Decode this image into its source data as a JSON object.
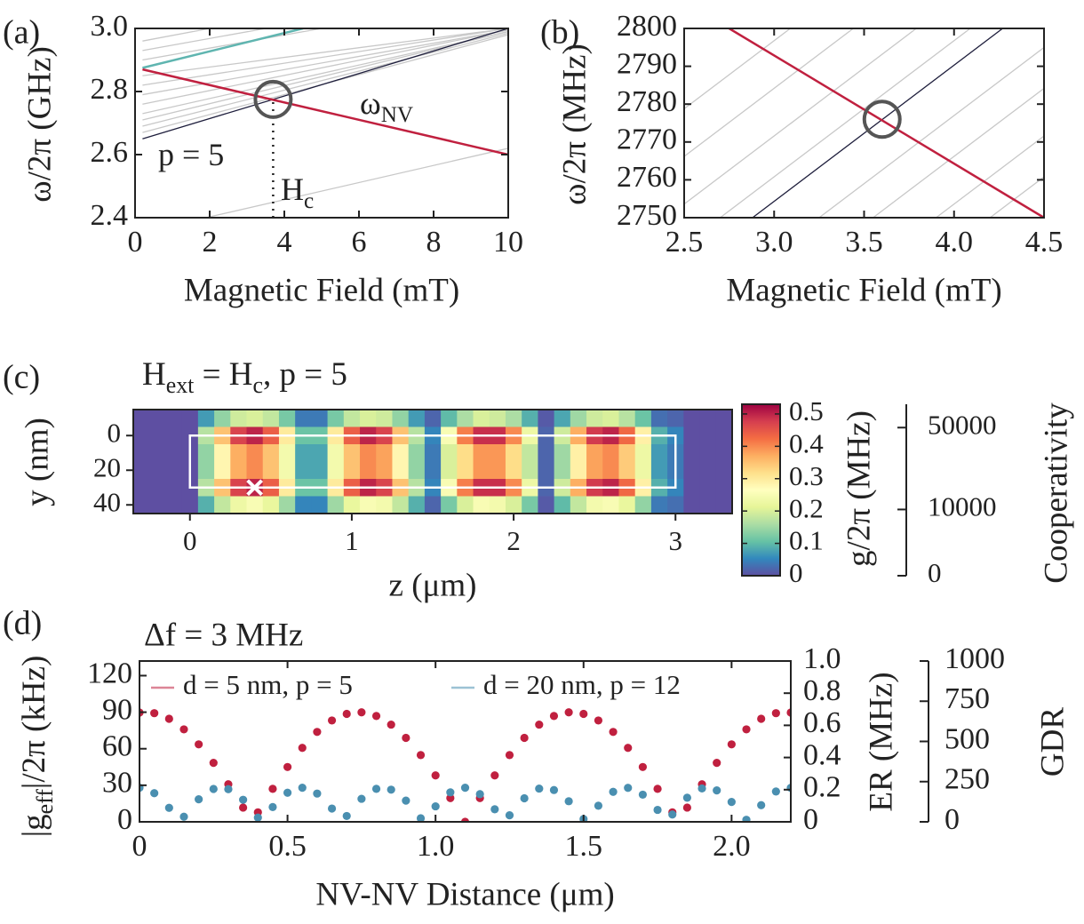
{
  "chart_data": [
    {
      "type": "line",
      "panel_label": "(a)",
      "ylabel": "ω/2π (GHz)",
      "xlabel": "Magnetic Field (mT)",
      "xlim": [
        0,
        10
      ],
      "ylim": [
        2.4,
        3.0
      ],
      "xticks": [
        0,
        2,
        4,
        6,
        8,
        10
      ],
      "yticks": [
        2.4,
        2.6,
        2.8,
        {
          "value": 3,
          "label": "3.0"
        }
      ],
      "series": [
        {
          "color": "#c8c8c8",
          "x": [
            0.2,
            10
          ],
          "values": [
            2.67,
            2.98
          ]
        },
        {
          "color": "#c8c8c8",
          "x": [
            0.2,
            10
          ],
          "values": [
            2.69,
            2.985
          ]
        },
        {
          "color": "#c8c8c8",
          "x": [
            0.2,
            10
          ],
          "values": [
            2.71,
            2.99
          ]
        },
        {
          "color": "#c8c8c8",
          "x": [
            0.2,
            10
          ],
          "values": [
            2.73,
            2.99
          ]
        },
        {
          "color": "#c8c8c8",
          "x": [
            0.2,
            10
          ],
          "values": [
            2.76,
            2.995
          ]
        },
        {
          "color": "#c8c8c8",
          "x": [
            0.2,
            10
          ],
          "values": [
            2.79,
            2.995
          ]
        },
        {
          "color": "#c8c8c8",
          "x": [
            0.2,
            10
          ],
          "values": [
            2.82,
            3.0
          ]
        },
        {
          "color": "#c8c8c8",
          "x": [
            0.2,
            10
          ],
          "values": [
            2.85,
            3.0
          ]
        },
        {
          "color": "#c8c8c8",
          "x": [
            0.2,
            5
          ],
          "values": [
            2.9,
            3.0
          ]
        },
        {
          "color": "#c8c8c8",
          "x": [
            0.2,
            3.5
          ],
          "values": [
            2.93,
            3.0
          ]
        },
        {
          "color": "#c8c8c8",
          "x": [
            0.2,
            2
          ],
          "values": [
            2.96,
            3.0
          ]
        },
        {
          "color": "#c8c8c8",
          "x": [
            1.9,
            10
          ],
          "values": [
            2.4,
            2.62
          ]
        },
        {
          "color": "#1e1e3c",
          "x": [
            0.2,
            10
          ],
          "values": [
            2.65,
            3.0
          ]
        },
        {
          "color": "#5fb5b0",
          "x": [
            0.2,
            4.5
          ],
          "values": [
            2.875,
            3.0
          ]
        },
        {
          "color": "#c0203f",
          "x": [
            0.2,
            10
          ],
          "values": [
            2.87,
            2.6
          ]
        }
      ],
      "crossing": {
        "x": 3.7,
        "y": 2.775
      },
      "dropline": true,
      "annotations": [
        [
          "p = 5"
        ],
        [
          "ω",
          {
            "sub": "NV"
          }
        ],
        [
          "H",
          {
            "sub": "c"
          }
        ]
      ]
    },
    {
      "type": "line",
      "panel_label": "(b)",
      "ylabel": "ω/2π (MHz)",
      "xlabel": "Magnetic Field (mT)",
      "xlim": [
        2.5,
        4.5
      ],
      "ylim": [
        2750,
        2800
      ],
      "xticks": [
        2.5,
        {
          "value": 3,
          "label": "3.0"
        },
        3.5,
        {
          "value": 4,
          "label": "4.0"
        },
        4.5
      ],
      "yticks": [
        2750,
        2760,
        2770,
        2780,
        2790,
        2800
      ],
      "series": [
        {
          "color": "#c8c8c8",
          "x": [
            1.7,
            3.09
          ],
          "values": [
            2750,
            2800
          ]
        },
        {
          "color": "#c8c8c8",
          "x": [
            2.05,
            3.44
          ],
          "values": [
            2750,
            2800
          ]
        },
        {
          "color": "#c8c8c8",
          "x": [
            2.4,
            3.79
          ],
          "values": [
            2750,
            2800
          ]
        },
        {
          "color": "#c8c8c8",
          "x": [
            2.7,
            4.09
          ],
          "values": [
            2750,
            2800
          ]
        },
        {
          "color": "#c8c8c8",
          "x": [
            3.25,
            4.64
          ],
          "values": [
            2750,
            2800
          ]
        },
        {
          "color": "#c8c8c8",
          "x": [
            3.55,
            4.94
          ],
          "values": [
            2750,
            2800
          ]
        },
        {
          "color": "#c8c8c8",
          "x": [
            3.9,
            5.29
          ],
          "values": [
            2750,
            2800
          ]
        },
        {
          "color": "#c8c8c8",
          "x": [
            4.2,
            5.59
          ],
          "values": [
            2750,
            2800
          ]
        },
        {
          "color": "#1e1e3c",
          "x": [
            2.88,
            4.27
          ],
          "values": [
            2750,
            2800
          ]
        },
        {
          "color": "#c0203f",
          "x": [
            2.75,
            4.5
          ],
          "values": [
            2800,
            2750
          ]
        }
      ],
      "crossing": {
        "x": 3.6,
        "y": 2776
      }
    },
    {
      "type": "heatmap",
      "panel_label": "(c)",
      "title": [
        "H",
        {
          "sub": "ext"
        },
        " = H",
        {
          "sub": "c"
        },
        ", p = 5"
      ],
      "ylabel": "y (nm)",
      "xlabel": "z (μm)",
      "zlabel": "g/2π (MHz)",
      "y2label": "Cooperativity",
      "xlim": [
        -0.35,
        3.35
      ],
      "ylim": [
        -15,
        45
      ],
      "yinvert": true,
      "xticks": [
        0,
        1,
        2,
        3
      ],
      "yticks": [
        0,
        20,
        40
      ],
      "x": [
        -0.3,
        -0.2,
        -0.1,
        0,
        0.1,
        0.2,
        0.3,
        0.4,
        0.5,
        0.6,
        0.7,
        0.8,
        0.9,
        1,
        1.1,
        1.2,
        1.3,
        1.4,
        1.5,
        1.6,
        1.7,
        1.8,
        1.9,
        2,
        2.1,
        2.2,
        2.3,
        2.4,
        2.5,
        2.6,
        2.7,
        2.8,
        2.9,
        3,
        3.1,
        3.2,
        3.3
      ],
      "y": [
        -10,
        0,
        10,
        20,
        30,
        40
      ],
      "z": [
        [
          0,
          0,
          0,
          0,
          0.07,
          0.14,
          0.19,
          0.2,
          0.18,
          0.12,
          0.04,
          0.04,
          0.12,
          0.18,
          0.2,
          0.19,
          0.14,
          0.07,
          0.02,
          0.1,
          0.16,
          0.2,
          0.19,
          0.16,
          0.09,
          0.01,
          0.08,
          0.15,
          0.19,
          0.2,
          0.17,
          0.11,
          0.03,
          0.02,
          0,
          0,
          0
        ],
        [
          0,
          0,
          0,
          0,
          0.17,
          0.35,
          0.47,
          0.5,
          0.44,
          0.3,
          0.11,
          0.11,
          0.3,
          0.44,
          0.5,
          0.47,
          0.35,
          0.17,
          0.05,
          0.25,
          0.41,
          0.49,
          0.49,
          0.4,
          0.23,
          0.02,
          0.19,
          0.37,
          0.48,
          0.5,
          0.43,
          0.29,
          0.09,
          0.05,
          0,
          0,
          0
        ],
        [
          0,
          0,
          0,
          0,
          0.14,
          0.28,
          0.37,
          0.4,
          0.35,
          0.24,
          0.08,
          0.08,
          0.24,
          0.35,
          0.4,
          0.38,
          0.28,
          0.14,
          0.04,
          0.2,
          0.32,
          0.39,
          0.39,
          0.32,
          0.18,
          0.02,
          0.15,
          0.29,
          0.38,
          0.4,
          0.34,
          0.23,
          0.07,
          0.04,
          0,
          0,
          0
        ],
        [
          0,
          0,
          0,
          0,
          0.14,
          0.28,
          0.37,
          0.4,
          0.35,
          0.24,
          0.08,
          0.08,
          0.24,
          0.35,
          0.4,
          0.38,
          0.28,
          0.14,
          0.04,
          0.2,
          0.32,
          0.39,
          0.39,
          0.32,
          0.18,
          0.02,
          0.15,
          0.29,
          0.38,
          0.4,
          0.34,
          0.23,
          0.07,
          0.04,
          0,
          0,
          0
        ],
        [
          0,
          0,
          0,
          0,
          0.17,
          0.35,
          0.47,
          0.5,
          0.44,
          0.3,
          0.11,
          0.11,
          0.3,
          0.44,
          0.5,
          0.47,
          0.35,
          0.17,
          0.05,
          0.25,
          0.41,
          0.49,
          0.49,
          0.4,
          0.23,
          0.02,
          0.19,
          0.37,
          0.48,
          0.5,
          0.43,
          0.29,
          0.09,
          0.05,
          0,
          0,
          0
        ],
        [
          0,
          0,
          0,
          0,
          0.09,
          0.18,
          0.23,
          0.25,
          0.22,
          0.15,
          0.05,
          0.05,
          0.15,
          0.22,
          0.25,
          0.24,
          0.18,
          0.09,
          0.02,
          0.12,
          0.2,
          0.25,
          0.24,
          0.2,
          0.12,
          0.01,
          0.1,
          0.18,
          0.24,
          0.25,
          0.22,
          0.14,
          0.04,
          0.03,
          0,
          0,
          0
        ]
      ],
      "zlim": [
        0,
        0.53
      ],
      "zticks": [
        0,
        0.1,
        0.2,
        0.3,
        0.4,
        0.5
      ],
      "colormap": [
        "#5e4fa2",
        "#3288bd",
        "#66c2a5",
        "#abdda4",
        "#e6f598",
        "#ffffbf",
        "#fee08b",
        "#fdae61",
        "#f46d43",
        "#d53e4f",
        "#9e0142"
      ],
      "y2lim": [
        0,
        67000
      ],
      "y2ticks": [
        0,
        10000,
        50000
      ],
      "y2scale": "sqrt",
      "outline": {
        "x": [
          0,
          3
        ],
        "y": [
          0,
          30
        ]
      },
      "marker": {
        "x": 0.4,
        "y": 30
      }
    },
    {
      "type": "scatter",
      "panel_label": "(d)",
      "title": "Δf = 3 MHz",
      "ylabel": [
        "|g",
        {
          "sub": "eff"
        },
        "|/2π (kHz)"
      ],
      "y2label": "ER (MHz)",
      "y3label": "GDR",
      "xlabel": "NV-NV Distance (μm)",
      "xlim": [
        0,
        2.2
      ],
      "ylim": [
        0,
        132
      ],
      "y2lim": [
        0,
        1
      ],
      "y3lim": [
        0,
        1000
      ],
      "xticks": [
        0,
        0.5,
        {
          "value": 1,
          "label": "1.0"
        },
        1.5,
        {
          "value": 2,
          "label": "2.0"
        }
      ],
      "yticks": [
        0,
        30,
        60,
        90,
        120
      ],
      "y2ticks": [
        0,
        0.2,
        0.4,
        0.6,
        0.8,
        {
          "value": 1,
          "label": "1.0"
        }
      ],
      "y3ticks": [
        0,
        250,
        500,
        750,
        1000
      ],
      "legend": "top",
      "x": [
        0,
        0.05,
        0.1,
        0.15,
        0.2,
        0.25,
        0.3,
        0.35,
        0.4,
        0.45,
        0.5,
        0.55,
        0.6,
        0.65,
        0.7,
        0.75,
        0.8,
        0.85,
        0.9,
        0.95,
        1,
        1.05,
        1.1,
        1.15,
        1.2,
        1.25,
        1.3,
        1.35,
        1.4,
        1.45,
        1.5,
        1.55,
        1.6,
        1.65,
        1.7,
        1.75,
        1.8,
        1.85,
        1.9,
        1.95,
        2,
        2.05,
        2.1,
        2.15,
        2.2
      ],
      "series": [
        {
          "name": "d = 5 nm, p = 5",
          "color": "#c0203f",
          "values": [
            89.7,
            89.2,
            84.6,
            75.9,
            63.6,
            48.4,
            30.8,
            11.7,
            7.8,
            27.1,
            45.0,
            60.7,
            73.8,
            83.2,
            88.6,
            89.9,
            86.9,
            79.8,
            68.9,
            54.8,
            38.1,
            19.5,
            0.0,
            19.5,
            38.1,
            54.8,
            68.9,
            79.8,
            86.9,
            89.9,
            88.6,
            83.2,
            73.8,
            60.7,
            45.0,
            27.1,
            7.8,
            11.7,
            30.8,
            48.4,
            63.6,
            75.9,
            84.6,
            89.2,
            89.7
          ]
        },
        {
          "name": "d = 20 nm, p = 12",
          "color": "#4a8fb0",
          "values": [
            28,
            23.5,
            11.5,
            4.2,
            18.5,
            27.0,
            26.8,
            18.1,
            3.5,
            12.1,
            23.9,
            28.0,
            23.2,
            10.9,
            4.8,
            18.9,
            27.1,
            26.4,
            17.4,
            2.9,
            12.7,
            24.2,
            28.0,
            22.7,
            10.3,
            5.4,
            19.3,
            27.3,
            26.1,
            16.9,
            2.3,
            13.2,
            24.6,
            27.9,
            22.3,
            9.8,
            6.0,
            19.8,
            27.4,
            25.8,
            16.3,
            1.7,
            13.7,
            24.9,
            27.9
          ]
        }
      ]
    }
  ]
}
